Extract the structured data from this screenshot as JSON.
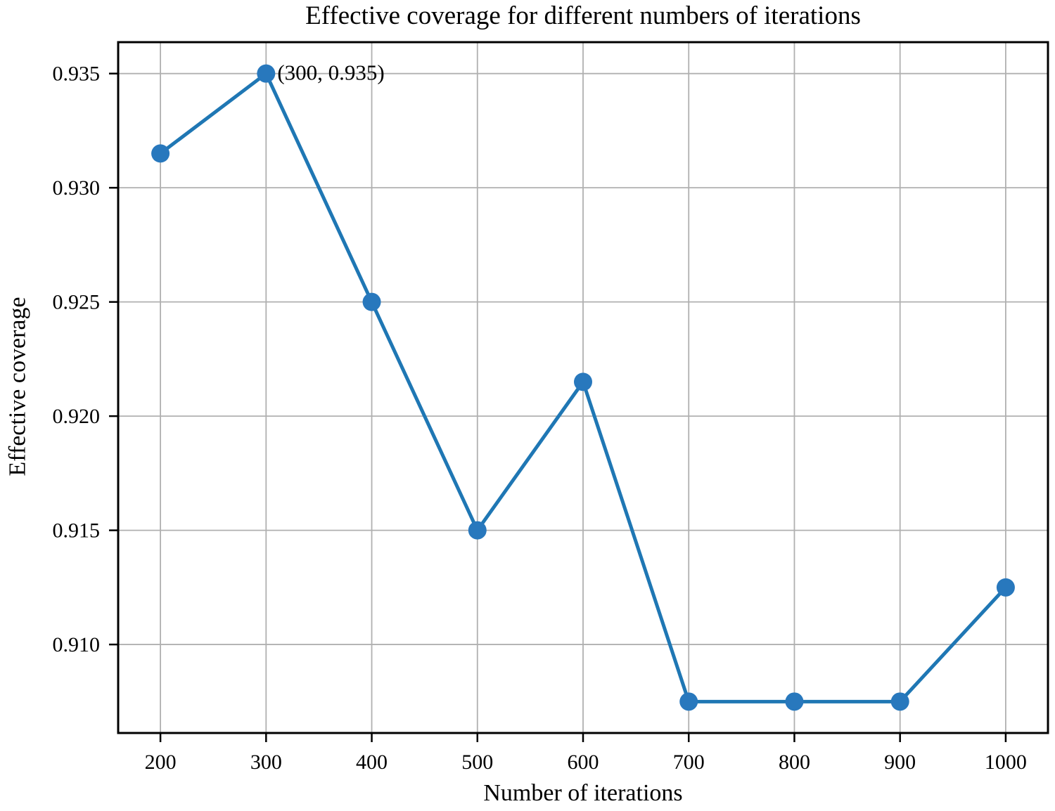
{
  "chart_data": {
    "type": "line",
    "title": "Effective coverage for different numbers of iterations",
    "xlabel": "Number of iterations",
    "ylabel": "Effective coverage",
    "x": [
      200,
      300,
      400,
      500,
      600,
      700,
      800,
      900,
      1000
    ],
    "y": [
      0.9315,
      0.935,
      0.925,
      0.915,
      0.9215,
      0.9075,
      0.9075,
      0.9075,
      0.9125
    ],
    "series_name": "Effective coverage",
    "annotation": {
      "text": "(300, 0.935)",
      "x": 300,
      "y": 0.935
    },
    "xlim": [
      160,
      1040
    ],
    "ylim": [
      0.906125,
      0.936375
    ],
    "xticks": [
      200,
      300,
      400,
      500,
      600,
      700,
      800,
      900,
      1000
    ],
    "xtick_labels": [
      "200",
      "300",
      "400",
      "500",
      "600",
      "700",
      "800",
      "900",
      "1000"
    ],
    "yticks": [
      0.91,
      0.915,
      0.92,
      0.925,
      0.93,
      0.935
    ],
    "ytick_labels": [
      "0.910",
      "0.915",
      "0.920",
      "0.925",
      "0.930",
      "0.935"
    ],
    "grid": true,
    "legend": "none",
    "colors": {
      "line": "#1f77b4",
      "marker": "#2878bd",
      "grid": "#b0b0b0",
      "axis": "#000000",
      "text": "#000000",
      "background": "#ffffff"
    }
  }
}
